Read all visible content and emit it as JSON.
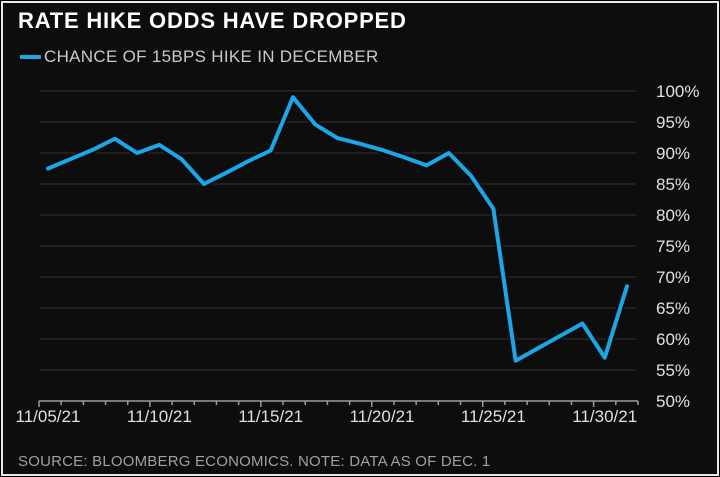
{
  "header": {
    "title": "RATE HIKE ODDS HAVE DROPPED"
  },
  "legend": {
    "label": "CHANCE OF 15BPS HIKE IN DECEMBER",
    "line_color": "#1ba6e8"
  },
  "footer": {
    "source": "SOURCE: BLOOMBERG ECONOMICS. NOTE: DATA AS OF DEC. 1"
  },
  "chart_data": {
    "type": "line",
    "title": "RATE HIKE ODDS HAVE DROPPED",
    "x": [
      "11/05/21",
      "11/06/21",
      "11/07/21",
      "11/08/21",
      "11/09/21",
      "11/10/21",
      "11/11/21",
      "11/12/21",
      "11/13/21",
      "11/14/21",
      "11/15/21",
      "11/16/21",
      "11/17/21",
      "11/18/21",
      "11/19/21",
      "11/20/21",
      "11/21/21",
      "11/22/21",
      "11/23/21",
      "11/24/21",
      "11/25/21",
      "11/26/21",
      "11/27/21",
      "11/28/21",
      "11/29/21",
      "11/30/21",
      "12/01/21"
    ],
    "series": [
      {
        "name": "CHANCE OF 15BPS HIKE IN DECEMBER",
        "color": "#1ba6e8",
        "values": [
          87.5,
          89.0,
          90.5,
          92.3,
          90.0,
          91.3,
          89.0,
          85.0,
          86.8,
          88.7,
          90.4,
          99.0,
          94.6,
          92.4,
          91.5,
          90.5,
          89.3,
          88.0,
          90.0,
          86.3,
          81.0,
          56.5,
          58.5,
          60.5,
          62.5,
          57.0,
          68.5
        ]
      }
    ],
    "xlabel": "",
    "ylabel": "",
    "ylim": [
      50,
      100
    ],
    "y_step": 5,
    "y_tick_labels": [
      "100%",
      "95%",
      "90%",
      "85%",
      "80%",
      "75%",
      "70%",
      "65%",
      "60%",
      "55%",
      "50%"
    ],
    "x_tick_labels": [
      "11/05/21",
      "11/10/21",
      "11/15/21",
      "11/20/21",
      "11/25/21",
      "11/30/21"
    ],
    "x_tick_days": [
      0,
      5,
      10,
      15,
      20,
      25
    ],
    "grid": "horizontal",
    "legend_position": "top-left",
    "colors": {
      "background": "#0d0d0d",
      "grid": "#333333",
      "axis": "#9c9c9c",
      "tick_label": "#e0e0e0"
    }
  }
}
